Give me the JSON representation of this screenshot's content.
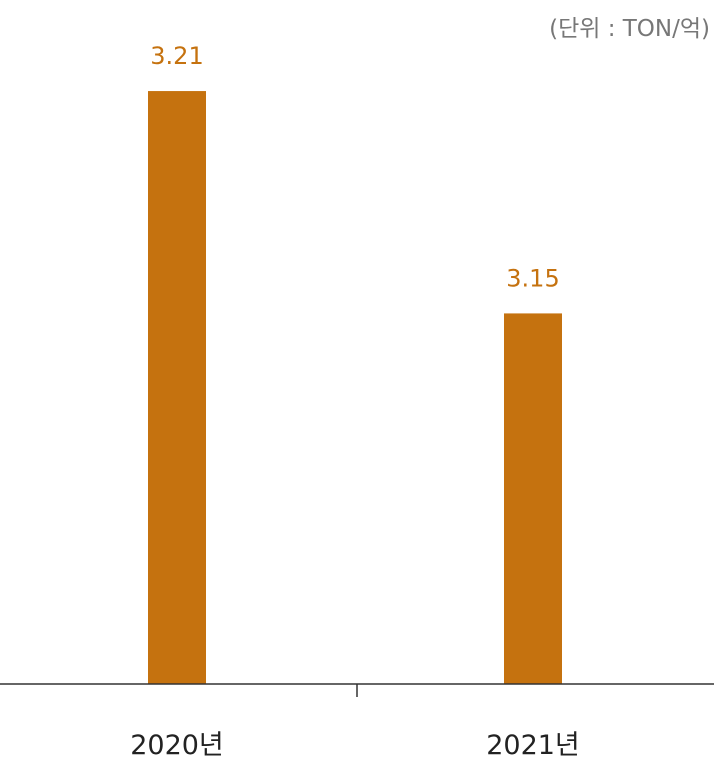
{
  "chart_data": {
    "type": "bar",
    "title": "",
    "xlabel": "",
    "ylabel": "",
    "unit_note": "(단위 : TON/억)",
    "categories": [
      "2020년",
      "2021년"
    ],
    "values": [
      3.21,
      3.15
    ],
    "value_labels": [
      "3.21",
      "3.15"
    ],
    "ylim": [
      3.05,
      3.22
    ],
    "grid": false,
    "legend": "none",
    "colors": {
      "bar": "#c5720f",
      "value_label": "#c5720f",
      "axis": "#333333",
      "tick_label": "#222222",
      "unit_note": "#777777"
    }
  }
}
